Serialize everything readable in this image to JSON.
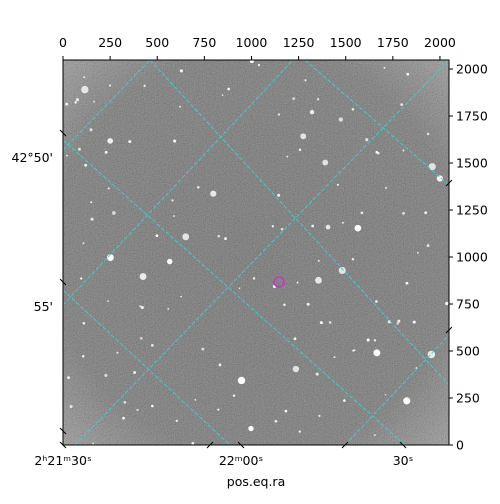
{
  "chart_data": {
    "type": "image",
    "x_label": "pos.eq.ra",
    "xlim": [
      0,
      2048
    ],
    "ylim": [
      0,
      2048
    ],
    "xticks": [
      0,
      250,
      500,
      750,
      1000,
      1250,
      1500,
      1750,
      2000
    ],
    "yticks": [
      0,
      250,
      500,
      750,
      1000,
      1250,
      1500,
      1750,
      2000
    ],
    "ra_ticks": [
      "2ʰ21ᵐ30ˢ",
      "22ᵐ00ˢ",
      "30ˢ"
    ],
    "dec_ticks": [
      "42°50'",
      "55'"
    ],
    "grid_color": "#40d0d0",
    "points": {
      "x": [
        1146
      ],
      "y": [
        867
      ],
      "color": "#cc33cc"
    }
  }
}
